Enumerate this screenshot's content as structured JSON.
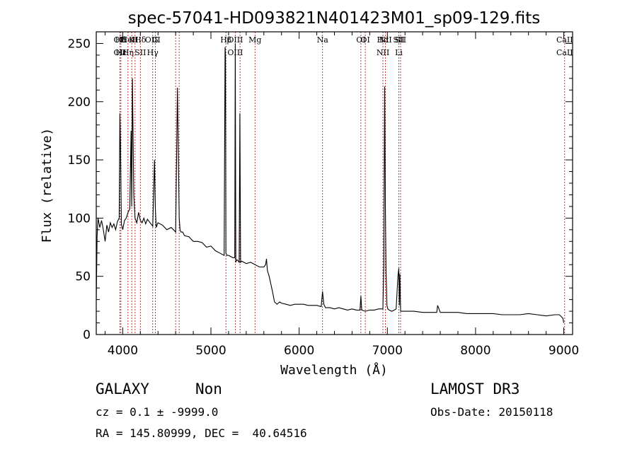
{
  "chart_data": {
    "type": "line",
    "title": "spec-57041-HD093821N401423M01_sp09-129.fits",
    "xlabel": "Wavelength (Å)",
    "ylabel": "Flux (relative)",
    "xlim": [
      3700,
      9100
    ],
    "ylim": [
      0,
      260
    ],
    "xticks": [
      4000,
      5000,
      6000,
      7000,
      8000,
      9000
    ],
    "yticks": [
      0,
      50,
      100,
      150,
      200,
      250
    ],
    "grid": false,
    "series": [
      {
        "x": [
          3700,
          3710,
          3720,
          3740,
          3760,
          3780,
          3800,
          3820,
          3840,
          3860,
          3880,
          3900,
          3920,
          3940,
          3960,
          3968,
          3975,
          3985,
          4000,
          4020,
          4040,
          4060,
          4080,
          4095,
          4102,
          4110,
          4125,
          4140,
          4160,
          4180,
          4200,
          4220,
          4240,
          4260,
          4280,
          4300,
          4320,
          4340,
          4360,
          4370,
          4380,
          4400,
          4450,
          4500,
          4550,
          4600,
          4620,
          4640,
          4650,
          4660,
          4680,
          4700,
          4750,
          4800,
          4850,
          4900,
          4950,
          5000,
          5050,
          5100,
          5150,
          5160,
          5165,
          5170,
          5180,
          5200,
          5250,
          5270,
          5276,
          5282,
          5290,
          5300,
          5320,
          5328,
          5336,
          5350,
          5400,
          5450,
          5500,
          5550,
          5600,
          5620,
          5630,
          5640,
          5660,
          5700,
          5720,
          5750,
          5780,
          5800,
          5850,
          5900,
          5950,
          6000,
          6050,
          6100,
          6150,
          6200,
          6250,
          6265,
          6280,
          6300,
          6350,
          6400,
          6450,
          6500,
          6550,
          6600,
          6650,
          6690,
          6700,
          6710,
          6750,
          6800,
          6850,
          6900,
          6950,
          6960,
          6970,
          6978,
          6985,
          6995,
          7005,
          7020,
          7050,
          7080,
          7100,
          7120,
          7130,
          7136,
          7142,
          7150,
          7160,
          7200,
          7300,
          7400,
          7500,
          7560,
          7570,
          7600,
          7700,
          7800,
          7900,
          8000,
          8100,
          8200,
          8300,
          8400,
          8500,
          8600,
          8700,
          8800,
          8900,
          8950,
          8990,
          9000
        ],
        "y": [
          30,
          85,
          100,
          92,
          98,
          90,
          80,
          94,
          88,
          96,
          92,
          95,
          90,
          97,
          100,
          190,
          160,
          95,
          90,
          98,
          100,
          105,
          108,
          175,
          110,
          220,
          120,
          100,
          96,
          105,
          98,
          96,
          100,
          95,
          99,
          97,
          95,
          93,
          150,
          108,
          92,
          96,
          94,
          90,
          92,
          88,
          212,
          100,
          90,
          88,
          88,
          85,
          84,
          80,
          80,
          79,
          75,
          76,
          72,
          70,
          68,
          247,
          240,
          70,
          68,
          68,
          66,
          66,
          250,
          62,
          64,
          64,
          62,
          190,
          62,
          63,
          61,
          62,
          60,
          58,
          58,
          60,
          65,
          55,
          50,
          36,
          28,
          26,
          28,
          27,
          26,
          25,
          26,
          26,
          26,
          25,
          25,
          25,
          24,
          37,
          26,
          23,
          23,
          22,
          23,
          22,
          21,
          22,
          21,
          21,
          33,
          21,
          20,
          21,
          21,
          22,
          22,
          60,
          213,
          110,
          55,
          25,
          22,
          21,
          20,
          21,
          22,
          50,
          57,
          25,
          52,
          20,
          20,
          20,
          20,
          19,
          19,
          19,
          25,
          19,
          19,
          19,
          18,
          18,
          18,
          18,
          17,
          17,
          17,
          18,
          17,
          16,
          17,
          17,
          14,
          10
        ]
      }
    ],
    "emission_lines": [
      {
        "x": 3968,
        "labels": [
          "OII",
          "OII"
        ]
      },
      {
        "x": 3980,
        "labels": [
          "Hδ",
          "Hε"
        ]
      },
      {
        "x": 4060,
        "labels": [
          "HeI",
          "Hη"
        ]
      },
      {
        "x": 4102,
        "labels": [
          "K"
        ]
      },
      {
        "x": 4140,
        "labels": [
          "H"
        ]
      },
      {
        "x": 4200,
        "labels": [
          "Hδ",
          "SII"
        ]
      },
      {
        "x": 4340,
        "labels": [
          "OIII",
          "Hγ"
        ]
      },
      {
        "x": 4370,
        "labels": [
          "G"
        ]
      },
      {
        "x": 4600,
        "labels": []
      },
      {
        "x": 4640,
        "labels": []
      },
      {
        "x": 5170,
        "labels": [
          "Hβ"
        ]
      },
      {
        "x": 5276,
        "labels": [
          "OIII",
          "OIII"
        ]
      },
      {
        "x": 5330,
        "labels": []
      },
      {
        "x": 5500,
        "labels": [
          "Mg"
        ]
      },
      {
        "x": 6265,
        "labels": [
          "Na"
        ]
      },
      {
        "x": 6700,
        "labels": [
          "OI"
        ]
      },
      {
        "x": 6750,
        "labels": [
          "OI"
        ]
      },
      {
        "x": 6950,
        "labels": [
          "Hα",
          "NII"
        ]
      },
      {
        "x": 6978,
        "labels": [
          "NII"
        ]
      },
      {
        "x": 7130,
        "labels": [
          "SII",
          "Li"
        ]
      },
      {
        "x": 7150,
        "labels": [
          "SII"
        ]
      },
      {
        "x": 9010,
        "labels": [
          "CaII",
          "CaII"
        ]
      }
    ],
    "line_color": "#000000",
    "marker_color": "#b22222"
  },
  "footer": {
    "object_class": "GALAXY",
    "subclass": "Non",
    "survey": "LAMOST DR3",
    "redshift": "cz = 0.1 ± -9999.0",
    "obs_date": "Obs-Date: 20150118",
    "coords": "RA = 145.80999, DEC =  40.64516"
  }
}
